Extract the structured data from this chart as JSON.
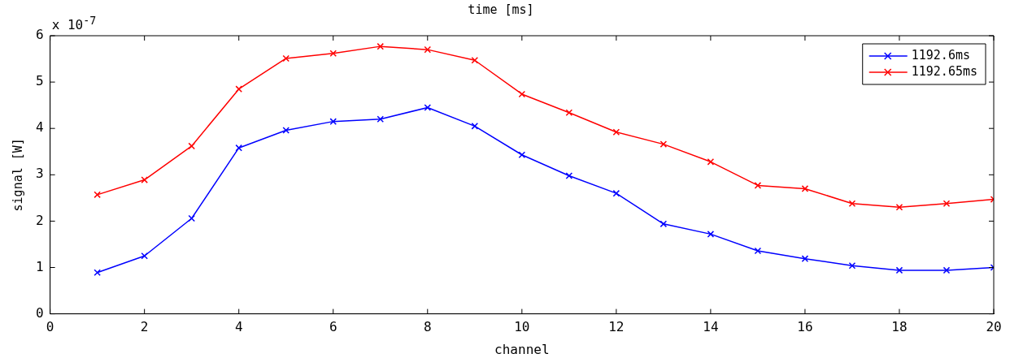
{
  "chart_data": {
    "type": "line",
    "title": "time [ms]",
    "xlabel": "channel",
    "ylabel": "signal [W]",
    "annotations": [
      "x 10$^{-7}$"
    ],
    "x": [
      1,
      2,
      3,
      4,
      5,
      6,
      7,
      8,
      9,
      10,
      11,
      12,
      13,
      14,
      15,
      16,
      17,
      18,
      19,
      20
    ],
    "xlim": [
      0,
      20
    ],
    "xticks": [
      0,
      2,
      4,
      6,
      8,
      10,
      12,
      14,
      16,
      18,
      20
    ],
    "ylim": [
      0,
      6
    ],
    "yticks": [
      0,
      1,
      2,
      3,
      4,
      5,
      6
    ],
    "grid": false,
    "legend": "top right",
    "marker": "cross",
    "line_style": "solid",
    "series": [
      {
        "name": "1192.6ms",
        "color": "#0000ff",
        "values": [
          0.89,
          1.25,
          2.06,
          3.58,
          3.96,
          4.15,
          4.2,
          4.45,
          4.05,
          3.43,
          2.98,
          2.6,
          1.94,
          1.72,
          1.36,
          1.19,
          1.04,
          0.94,
          0.94,
          1.0
        ]
      },
      {
        "name": "1192.65ms",
        "color": "#ff0000",
        "values": [
          2.57,
          2.89,
          3.62,
          4.85,
          5.51,
          5.62,
          5.77,
          5.7,
          5.47,
          4.74,
          4.34,
          3.92,
          3.66,
          3.28,
          2.77,
          2.7,
          2.38,
          2.3,
          2.38,
          2.47
        ]
      }
    ]
  }
}
